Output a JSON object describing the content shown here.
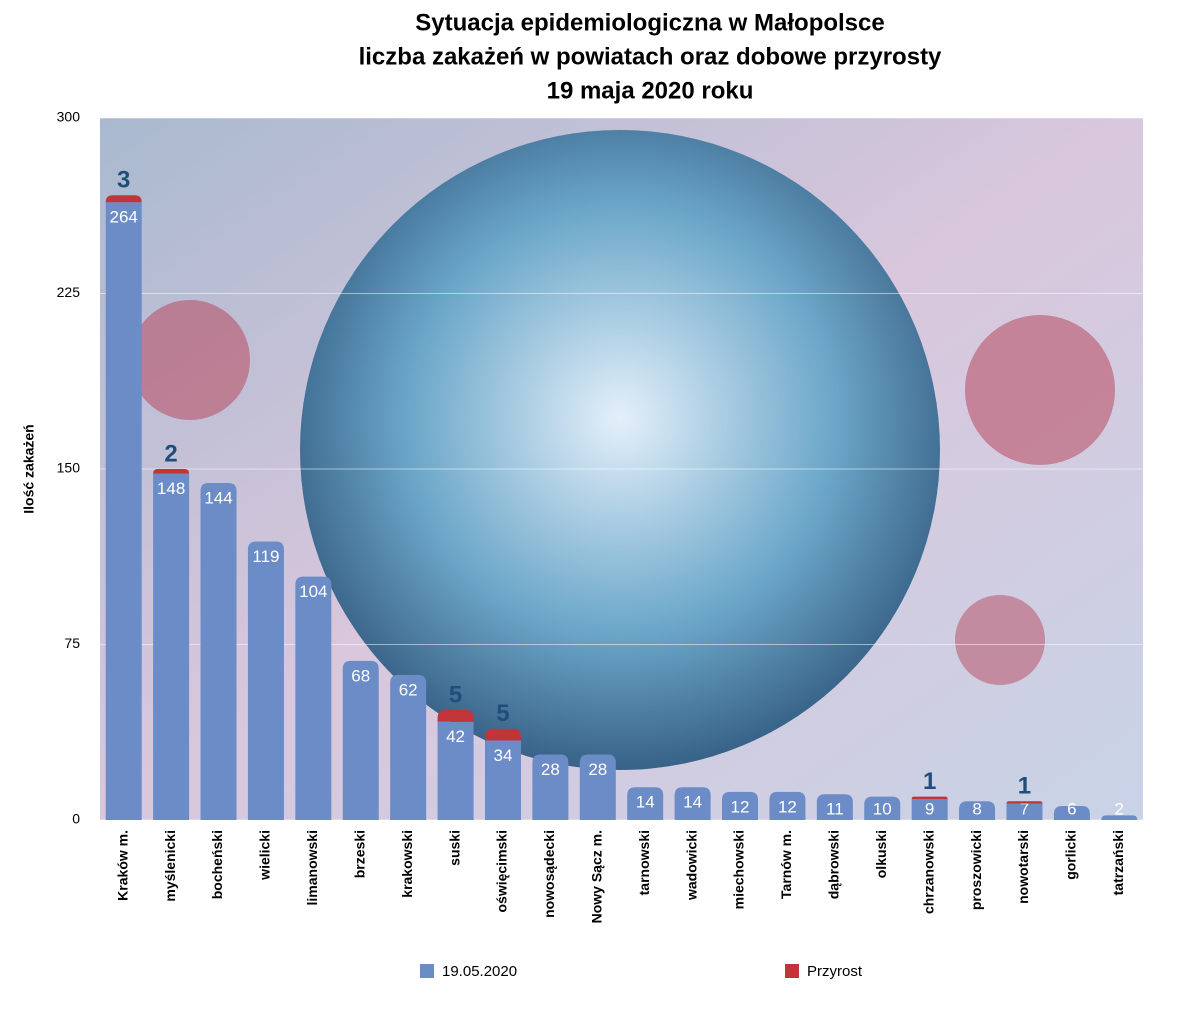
{
  "chart_data": {
    "type": "stacked-bar",
    "title": [
      "Sytuacja epidemiologiczna w Małopolsce",
      "liczba zakażeń w powiatach oraz dobowe przyrosty",
      "19 maja 2020 roku"
    ],
    "y_label": "Ilość zakażeń",
    "categories": [
      "Kraków m.",
      "myślenicki",
      "bocheński",
      "wielicki",
      "limanowski",
      "brzeski",
      "krakowski",
      "suski",
      "oświęcimski",
      "nowosądecki",
      "Nowy Sącz m.",
      "tarnowski",
      "wadowicki",
      "miechowski",
      "Tarnów m.",
      "dąbrowski",
      "olkuski",
      "chrzanowski",
      "proszowicki",
      "nowotarski",
      "gorlicki",
      "tatrzański"
    ],
    "series": [
      {
        "name": "19.05.2020",
        "color": "#6b8cc6",
        "label_color": "#ffffff",
        "values": [
          264,
          148,
          144,
          119,
          104,
          68,
          62,
          42,
          34,
          28,
          28,
          14,
          14,
          12,
          12,
          11,
          10,
          9,
          8,
          7,
          6,
          2
        ]
      },
      {
        "name": "Przyrost",
        "color": "#c0343a",
        "label_color": "#1f4e79",
        "values": [
          3,
          2,
          null,
          null,
          null,
          null,
          null,
          5,
          5,
          null,
          null,
          null,
          null,
          null,
          null,
          null,
          null,
          1,
          null,
          1,
          null,
          null
        ]
      }
    ],
    "ylim": [
      0,
      300
    ],
    "yticks": [
      0,
      75,
      150,
      225,
      300
    ],
    "grid": true
  }
}
